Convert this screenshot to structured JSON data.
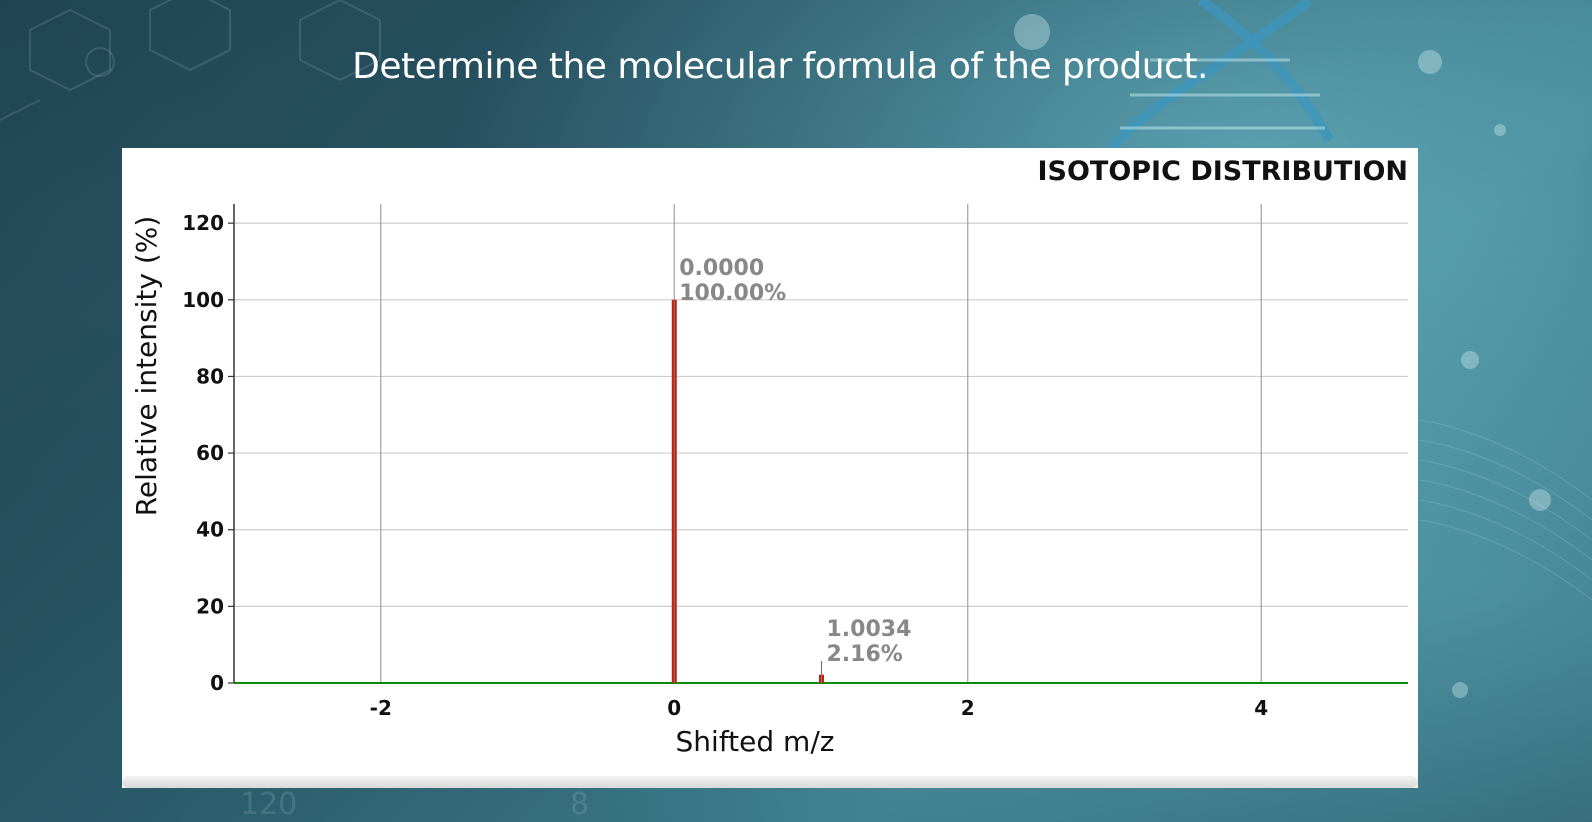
{
  "question": "Determine the molecular formula of the product.",
  "colors": {
    "peak": "#cc1a0a",
    "baseline": "#0a8a0a",
    "grid": "#cccccc",
    "label": "#888888"
  },
  "chart_data": {
    "type": "bar",
    "title": "ISOTOPIC DISTRIBUTION",
    "xlabel": "Shifted m/z",
    "ylabel": "Relative intensity (%)",
    "xlim": [
      -3,
      5
    ],
    "ylim": [
      0,
      125
    ],
    "xticks": [
      "-2",
      "0",
      "2",
      "4"
    ],
    "xtick_values": [
      -2,
      0,
      2,
      4
    ],
    "yticks": [
      "0",
      "20",
      "40",
      "60",
      "80",
      "100",
      "120"
    ],
    "ytick_values": [
      0,
      20,
      40,
      60,
      80,
      100,
      120
    ],
    "grid": true,
    "peaks": [
      {
        "x": 0.0,
        "y": 100.0,
        "mz_label": "0.0000",
        "pct_label": "100.00%"
      },
      {
        "x": 1.0034,
        "y": 2.16,
        "mz_label": "1.0034",
        "pct_label": "2.16%"
      }
    ]
  }
}
